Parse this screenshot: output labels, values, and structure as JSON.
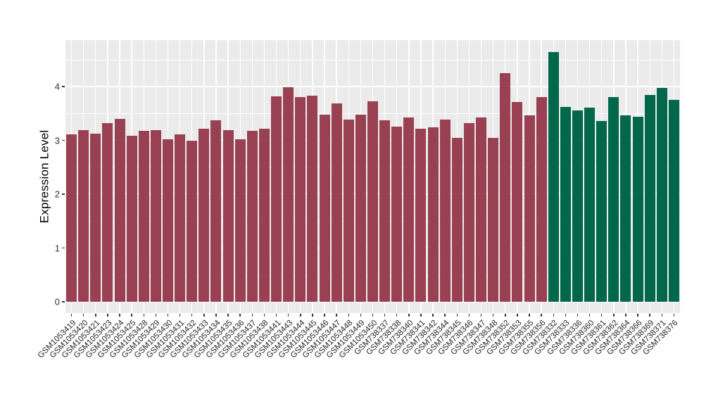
{
  "chart_data": {
    "type": "bar",
    "title": "",
    "xlabel": "",
    "ylabel": "Expression Level",
    "ylim": [
      0,
      4.86
    ],
    "ytick_labels": [
      "0",
      "1",
      "2",
      "3",
      "4"
    ],
    "yticks": [
      0,
      1,
      2,
      3,
      4
    ],
    "grid": "on",
    "legend": "none",
    "panel_bg_color": "#EBEBEB",
    "grid_color": "#FFFFFF",
    "group_colors": {
      "maroon": "#994152",
      "green": "#00684A"
    },
    "maroon_count": 40,
    "categories": [
      "GSM1053419",
      "GSM1053420",
      "GSM1053421",
      "GSM1053423",
      "GSM1053424",
      "GSM1053425",
      "GSM1053428",
      "GSM1053429",
      "GSM1053430",
      "GSM1053431",
      "GSM1053432",
      "GSM1053433",
      "GSM1053434",
      "GSM1053435",
      "GSM1053436",
      "GSM1053437",
      "GSM1053438",
      "GSM1053441",
      "GSM1053443",
      "GSM1053444",
      "GSM1053445",
      "GSM1053446",
      "GSM1053447",
      "GSM1053448",
      "GSM1053449",
      "GSM1053450",
      "GSM738337",
      "GSM738338",
      "GSM738340",
      "GSM738341",
      "GSM738342",
      "GSM738344",
      "GSM738345",
      "GSM738346",
      "GSM738347",
      "GSM738348",
      "GSM738352",
      "GSM738353",
      "GSM738355",
      "GSM738356",
      "GSM738332",
      "GSM738333",
      "GSM738336",
      "GSM738360",
      "GSM738361",
      "GSM738362",
      "GSM738364",
      "GSM738366",
      "GSM738369",
      "GSM738371",
      "GSM738376"
    ],
    "values": [
      3.11,
      3.19,
      3.13,
      3.32,
      3.4,
      3.08,
      3.17,
      3.19,
      3.02,
      3.11,
      2.99,
      3.22,
      3.37,
      3.19,
      3.02,
      3.17,
      3.22,
      3.82,
      3.99,
      3.8,
      3.83,
      3.48,
      3.68,
      3.39,
      3.48,
      3.73,
      3.37,
      3.26,
      3.42,
      3.22,
      3.24,
      3.38,
      3.05,
      3.32,
      3.42,
      3.05,
      4.25,
      3.71,
      3.47,
      3.81,
      4.64,
      3.62,
      3.55,
      3.61,
      3.36,
      3.81,
      3.47,
      3.44,
      3.84,
      3.97,
      3.75
    ],
    "series": [
      {
        "name": "group-maroon",
        "color": "#994152",
        "count": 40
      },
      {
        "name": "group-green",
        "color": "#00684A",
        "count": 11
      }
    ]
  }
}
